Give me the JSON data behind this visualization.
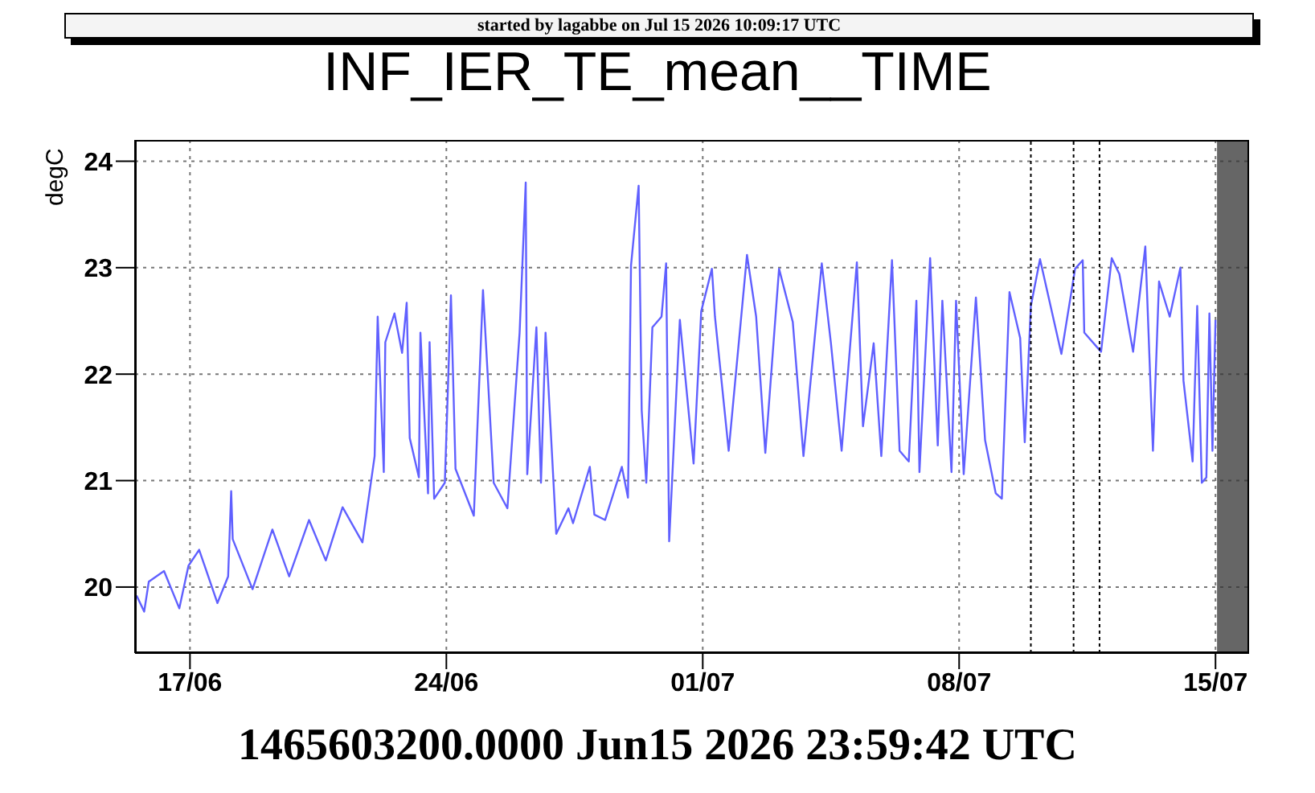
{
  "chart_data": {
    "type": "line",
    "title": "INF_IER_TE_mean__TIME",
    "xlabel": "1465603200.0000 Jun15 2026 23:59:42 UTC",
    "ylabel": "degC",
    "annotations": [
      "started by lagabbe on Jul 15 2026 10:09:17 UTC"
    ],
    "xlim": [
      "2026-06-15T12:00",
      "2026-07-15T22:00"
    ],
    "xticks": [
      {
        "value": "2026-06-17",
        "label": "17/06"
      },
      {
        "value": "2026-06-24",
        "label": "24/06"
      },
      {
        "value": "2026-07-01",
        "label": "01/07"
      },
      {
        "value": "2026-07-08",
        "label": "08/07"
      },
      {
        "value": "2026-07-15",
        "label": "15/07"
      }
    ],
    "ylim": [
      19.38,
      24.2
    ],
    "yticks": [
      20,
      21,
      22,
      23,
      24
    ],
    "grid": true,
    "ref_lines": [
      {
        "axis": "x",
        "value": "2026-07-09T23:00",
        "color": "#000000",
        "line_style": "dotted"
      },
      {
        "axis": "x",
        "value": "2026-07-11T03:00",
        "color": "#000000",
        "line_style": "dotted"
      },
      {
        "axis": "x",
        "value": "2026-07-11T20:00",
        "color": "#000000",
        "line_style": "dotted"
      }
    ],
    "bands": [
      {
        "axis": "x",
        "from": "2026-07-15T01:00",
        "to": "2026-07-15T22:00",
        "color": "#333333"
      }
    ],
    "series": [
      {
        "color": "#6060ff",
        "line_style": "solid",
        "x": [
          "2026-06-15T13:00",
          "2026-06-15T18:00",
          "2026-06-15T21:00",
          "2026-06-16T07:00",
          "2026-06-16T17:00",
          "2026-06-16T23:00",
          "2026-06-17T06:00",
          "2026-06-17T18:00",
          "2026-06-18T01:00",
          "2026-06-18T03:00",
          "2026-06-18T04:00",
          "2026-06-18T17:00",
          "2026-06-19T06:00",
          "2026-06-19T17:00",
          "2026-06-20T06:00",
          "2026-06-20T17:00",
          "2026-06-21T04:00",
          "2026-06-21T17:00",
          "2026-06-22T01:00",
          "2026-06-22T03:00",
          "2026-06-22T07:00",
          "2026-06-22T08:00",
          "2026-06-22T14:00",
          "2026-06-22T19:00",
          "2026-06-22T22:00",
          "2026-06-23T00:00",
          "2026-06-23T06:00",
          "2026-06-23T07:00",
          "2026-06-23T12:00",
          "2026-06-23T13:00",
          "2026-06-23T16:00",
          "2026-06-23T23:00",
          "2026-06-24T03:00",
          "2026-06-24T06:00",
          "2026-06-24T18:00",
          "2026-06-25T00:00",
          "2026-06-25T07:00",
          "2026-06-25T16:00",
          "2026-06-26T00:00",
          "2026-06-26T04:00",
          "2026-06-26T05:00",
          "2026-06-26T11:00",
          "2026-06-26T14:00",
          "2026-06-26T17:00",
          "2026-06-27T00:00",
          "2026-06-27T08:00",
          "2026-06-27T11:00",
          "2026-06-27T22:00",
          "2026-06-28T01:00",
          "2026-06-28T08:00",
          "2026-06-28T19:00",
          "2026-06-28T23:00",
          "2026-06-29T01:00",
          "2026-06-29T06:00",
          "2026-06-29T08:00",
          "2026-06-29T11:00",
          "2026-06-29T15:00",
          "2026-06-29T21:00",
          "2026-06-30T00:00",
          "2026-06-30T02:00",
          "2026-06-30T09:00",
          "2026-06-30T18:00",
          "2026-06-30T23:00",
          "2026-07-01T06:00",
          "2026-07-01T08:00",
          "2026-07-01T17:00",
          "2026-07-02T05:00",
          "2026-07-02T11:00",
          "2026-07-02T17:00",
          "2026-07-03T02:00",
          "2026-07-03T11:00",
          "2026-07-03T18:00",
          "2026-07-04T06:00",
          "2026-07-04T12:00",
          "2026-07-04T19:00",
          "2026-07-05T05:00",
          "2026-07-05T09:00",
          "2026-07-05T16:00",
          "2026-07-05T21:00",
          "2026-07-06T04:00",
          "2026-07-06T09:00",
          "2026-07-06T15:00",
          "2026-07-06T20:00",
          "2026-07-06T22:00",
          "2026-07-07T05:00",
          "2026-07-07T10:00",
          "2026-07-07T13:00",
          "2026-07-07T19:00",
          "2026-07-07T22:00",
          "2026-07-08T03:00",
          "2026-07-08T11:00",
          "2026-07-08T17:00",
          "2026-07-09T00:00",
          "2026-07-09T04:00",
          "2026-07-09T09:00",
          "2026-07-09T16:00",
          "2026-07-09T19:00",
          "2026-07-09T23:00",
          "2026-07-10T05:00",
          "2026-07-10T19:00",
          "2026-07-11T04:00",
          "2026-07-11T09:00",
          "2026-07-11T10:00",
          "2026-07-11T21:00",
          "2026-07-12T04:00",
          "2026-07-12T09:00",
          "2026-07-12T18:00",
          "2026-07-13T02:00",
          "2026-07-13T07:00",
          "2026-07-13T11:00",
          "2026-07-13T18:00",
          "2026-07-14T01:00",
          "2026-07-14T03:00",
          "2026-07-14T09:00",
          "2026-07-14T12:00",
          "2026-07-14T15:00",
          "2026-07-14T18:00",
          "2026-07-14T20:00",
          "2026-07-14T22:00",
          "2026-07-15T00:00"
        ],
        "values": [
          19.92,
          19.77,
          20.05,
          20.15,
          19.8,
          20.2,
          20.35,
          19.85,
          20.1,
          20.9,
          20.45,
          19.98,
          20.54,
          20.1,
          20.63,
          20.25,
          20.75,
          20.42,
          21.23,
          22.54,
          21.08,
          22.3,
          22.57,
          22.2,
          22.67,
          21.4,
          21.03,
          22.39,
          20.88,
          22.3,
          20.83,
          20.98,
          22.74,
          21.11,
          20.67,
          22.79,
          20.98,
          20.74,
          22.39,
          23.8,
          21.06,
          22.44,
          20.98,
          22.39,
          20.5,
          20.74,
          20.6,
          21.13,
          20.68,
          20.63,
          21.13,
          20.84,
          23.02,
          23.77,
          21.66,
          20.98,
          22.44,
          22.54,
          23.04,
          20.43,
          22.51,
          21.16,
          22.59,
          22.99,
          22.54,
          21.28,
          23.12,
          22.54,
          21.26,
          22.99,
          22.49,
          21.23,
          23.04,
          22.29,
          21.28,
          23.05,
          21.51,
          22.29,
          21.23,
          23.07,
          21.28,
          21.18,
          22.69,
          21.08,
          23.09,
          21.33,
          22.69,
          21.08,
          22.69,
          21.06,
          22.72,
          21.38,
          20.88,
          20.83,
          22.77,
          22.34,
          21.36,
          22.64,
          23.08,
          22.19,
          22.99,
          23.07,
          22.39,
          22.21,
          23.09,
          22.94,
          22.21,
          23.2,
          21.28,
          22.87,
          22.54,
          23.0,
          21.94,
          21.18,
          22.64,
          20.98,
          21.03,
          22.57,
          21.28,
          22.51
        ]
      }
    ]
  }
}
